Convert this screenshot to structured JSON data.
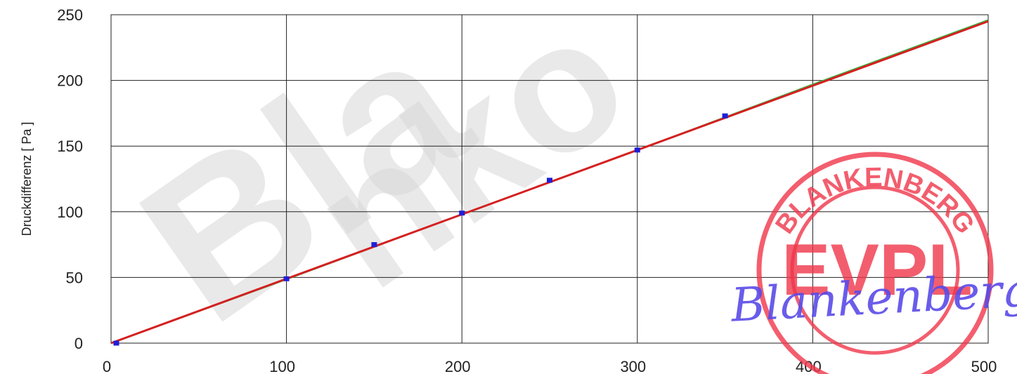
{
  "chart_data": {
    "type": "line",
    "ylabel": "Druckdifferenz  [  Pa  ]",
    "xlim": [
      0,
      500
    ],
    "ylim": [
      0,
      250
    ],
    "x_ticks": [
      "0",
      "100",
      "200",
      "300",
      "400",
      "500"
    ],
    "y_ticks": [
      "0",
      "50",
      "100",
      "150",
      "200",
      "250"
    ],
    "grid": true,
    "series": [
      {
        "kind": "measured",
        "color": "#1f1fd6",
        "x": [
          3,
          100,
          150,
          200,
          250,
          300,
          350
        ],
        "y": [
          0,
          49,
          75,
          99,
          124,
          147,
          173
        ]
      },
      {
        "kind": "fit-linear",
        "color": "#d42020",
        "x": [
          0,
          500
        ],
        "y": [
          0,
          245
        ]
      },
      {
        "kind": "fit-green",
        "color": "#3cb043",
        "x": [
          0,
          100,
          200,
          300,
          400,
          500
        ],
        "y": [
          0,
          48.5,
          98,
          147,
          197,
          246
        ]
      }
    ]
  },
  "overlay": {
    "watermark_text": "Blanko Muster",
    "stamp_text": "EVPL",
    "stamp_ring_text": "BLANKENBERG",
    "signature_text": "Blankenberg",
    "stamp_color": "#f0364a",
    "signature_color": "#5a4be8"
  }
}
